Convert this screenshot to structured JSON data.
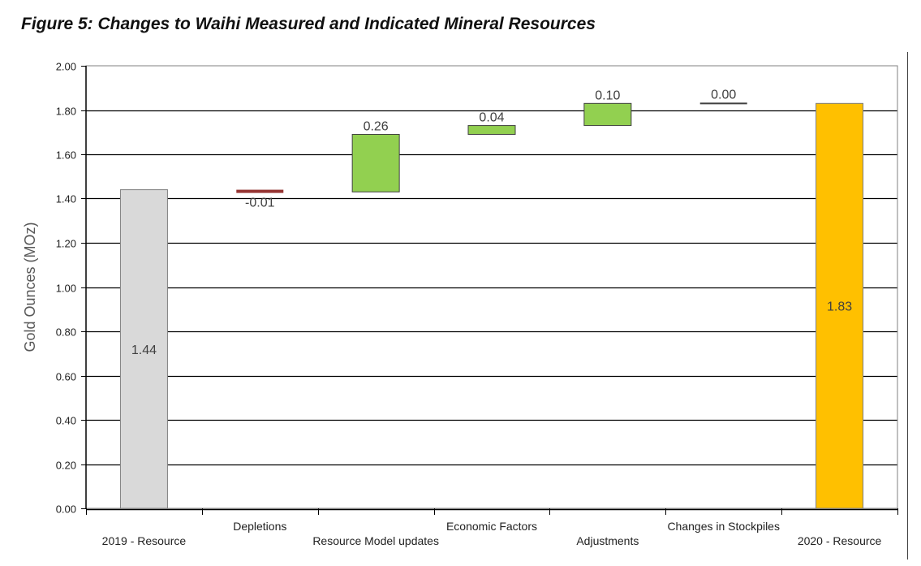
{
  "figure_title": "Figure 5: Changes to Waihi Measured and Indicated Mineral Resources",
  "chart_data": {
    "type": "waterfall",
    "title": "Figure 5: Changes to Waihi Measured and Indicated Mineral Resources",
    "xlabel": "",
    "ylabel": "Gold Ounces (MOz)",
    "ylim": [
      0,
      2.0
    ],
    "ytick_step": 0.2,
    "yticks": [
      "0.00",
      "0.20",
      "0.40",
      "0.60",
      "0.80",
      "1.00",
      "1.20",
      "1.40",
      "1.60",
      "1.80",
      "2.00"
    ],
    "grid": true,
    "categories": [
      "2019 - Resource",
      "Depletions",
      "Resource Model updates",
      "Economic Factors",
      "Adjustments",
      "Changes in Stockpiles",
      "2020 - Resource"
    ],
    "bars": [
      {
        "category": "2019 - Resource",
        "kind": "total",
        "start": 0,
        "end": 1.44,
        "label": "1.44",
        "color": "#d9d9d9"
      },
      {
        "category": "Depletions",
        "kind": "change",
        "start": 1.44,
        "end": 1.43,
        "label": "-0.01",
        "color": "#963634"
      },
      {
        "category": "Resource Model updates",
        "kind": "change",
        "start": 1.43,
        "end": 1.69,
        "label": "0.26",
        "color": "#92d050"
      },
      {
        "category": "Economic Factors",
        "kind": "change",
        "start": 1.69,
        "end": 1.73,
        "label": "0.04",
        "color": "#92d050"
      },
      {
        "category": "Adjustments",
        "kind": "change",
        "start": 1.73,
        "end": 1.83,
        "label": "0.10",
        "color": "#92d050"
      },
      {
        "category": "Changes in Stockpiles",
        "kind": "change",
        "start": 1.83,
        "end": 1.83,
        "label": "0.00",
        "color": "#404040"
      },
      {
        "category": "2020 - Resource",
        "kind": "total",
        "start": 0,
        "end": 1.83,
        "label": "1.83",
        "color": "#ffc000"
      }
    ]
  }
}
